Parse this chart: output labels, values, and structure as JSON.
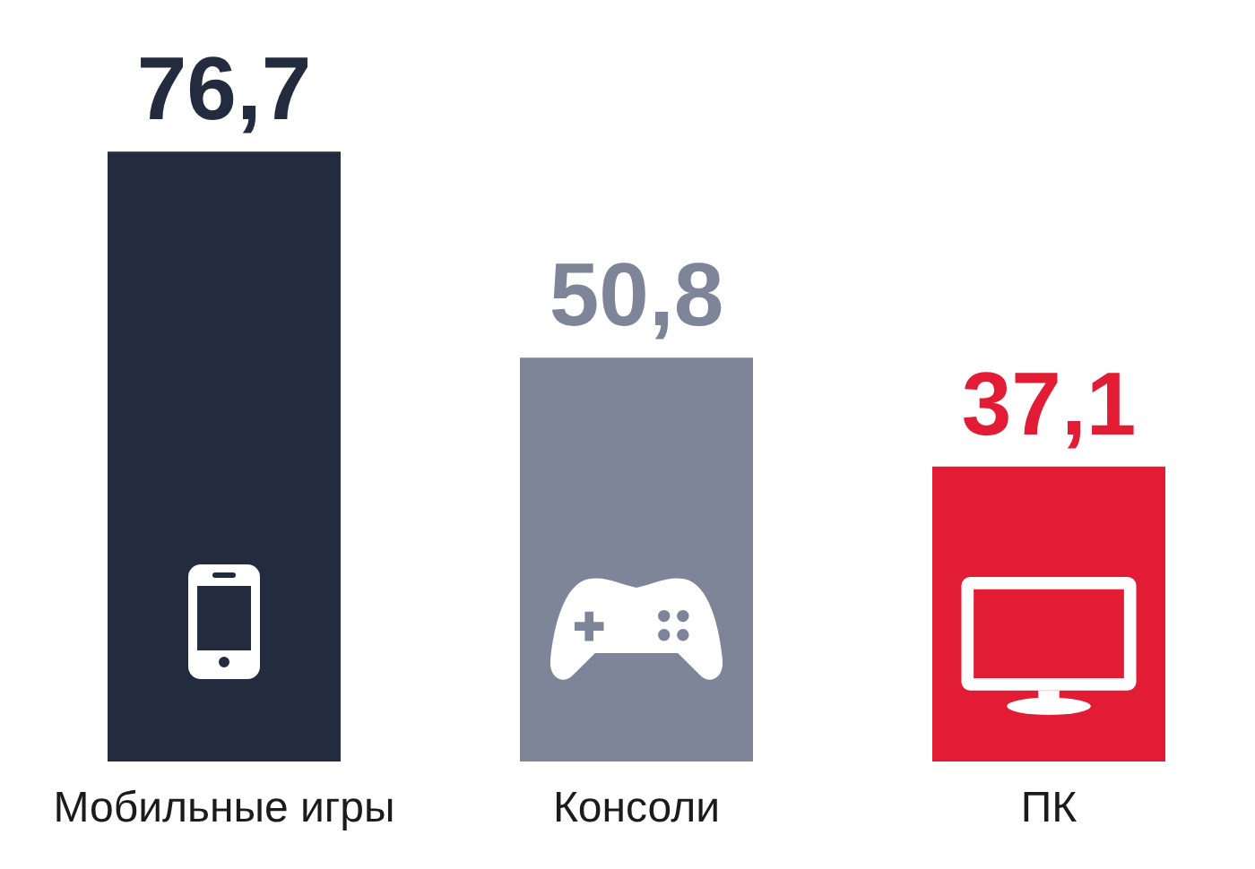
{
  "chart_data": {
    "type": "bar",
    "categories": [
      "Мобильные игры",
      "Консоли",
      "ПК"
    ],
    "values": [
      76.7,
      50.8,
      37.1
    ],
    "colors": [
      "#232b3e",
      "#7f8599",
      "#e31c35"
    ],
    "value_labels": [
      "76,7",
      "50,8",
      "37,1"
    ],
    "tick_labels": "x"
  }
}
